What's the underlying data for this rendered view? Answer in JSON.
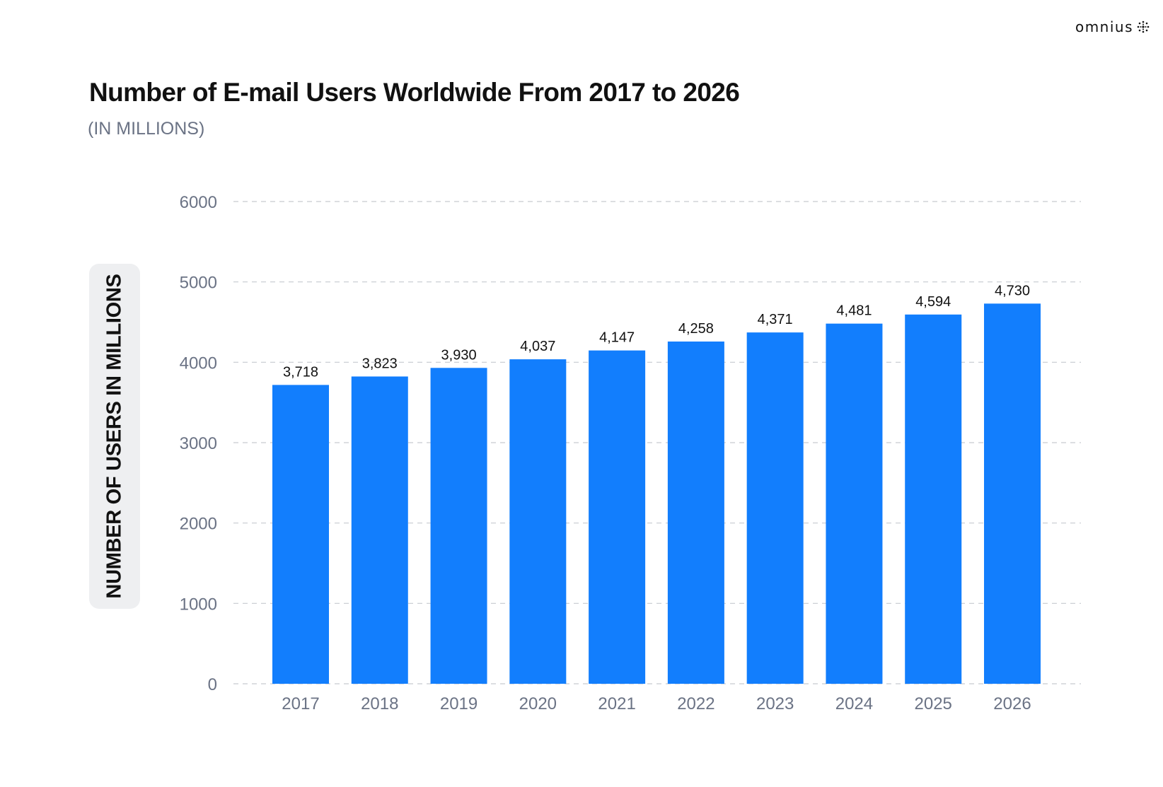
{
  "brand": {
    "name": "omnius",
    "icon": "omnius-logo-icon"
  },
  "chart_data": {
    "type": "bar",
    "title": "Number of E-mail Users Worldwide From 2017 to 2026",
    "subtitle": "(IN MILLIONS)",
    "ylabel": "NUMBER OF USERS IN MILLIONS",
    "xlabel": "",
    "categories": [
      "2017",
      "2018",
      "2019",
      "2020",
      "2021",
      "2022",
      "2023",
      "2024",
      "2025",
      "2026"
    ],
    "values": [
      3718,
      3823,
      3930,
      4037,
      4147,
      4258,
      4371,
      4481,
      4594,
      4730
    ],
    "data_labels": [
      "3,718",
      "3,823",
      "3,930",
      "4,037",
      "4,147",
      "4,258",
      "4,371",
      "4,481",
      "4,594",
      "4,730"
    ],
    "ylim": [
      0,
      6000
    ],
    "yticks": [
      "0",
      "1000",
      "2000",
      "3000",
      "4000",
      "5000",
      "6000"
    ],
    "grid": true,
    "grid_style": "dashed",
    "legend": "none",
    "bar_color": "#127efd"
  },
  "colors": {
    "bar": "#127efd",
    "axis_text": "#6b7385",
    "grid": "#c6c9cf",
    "title": "#111111"
  }
}
